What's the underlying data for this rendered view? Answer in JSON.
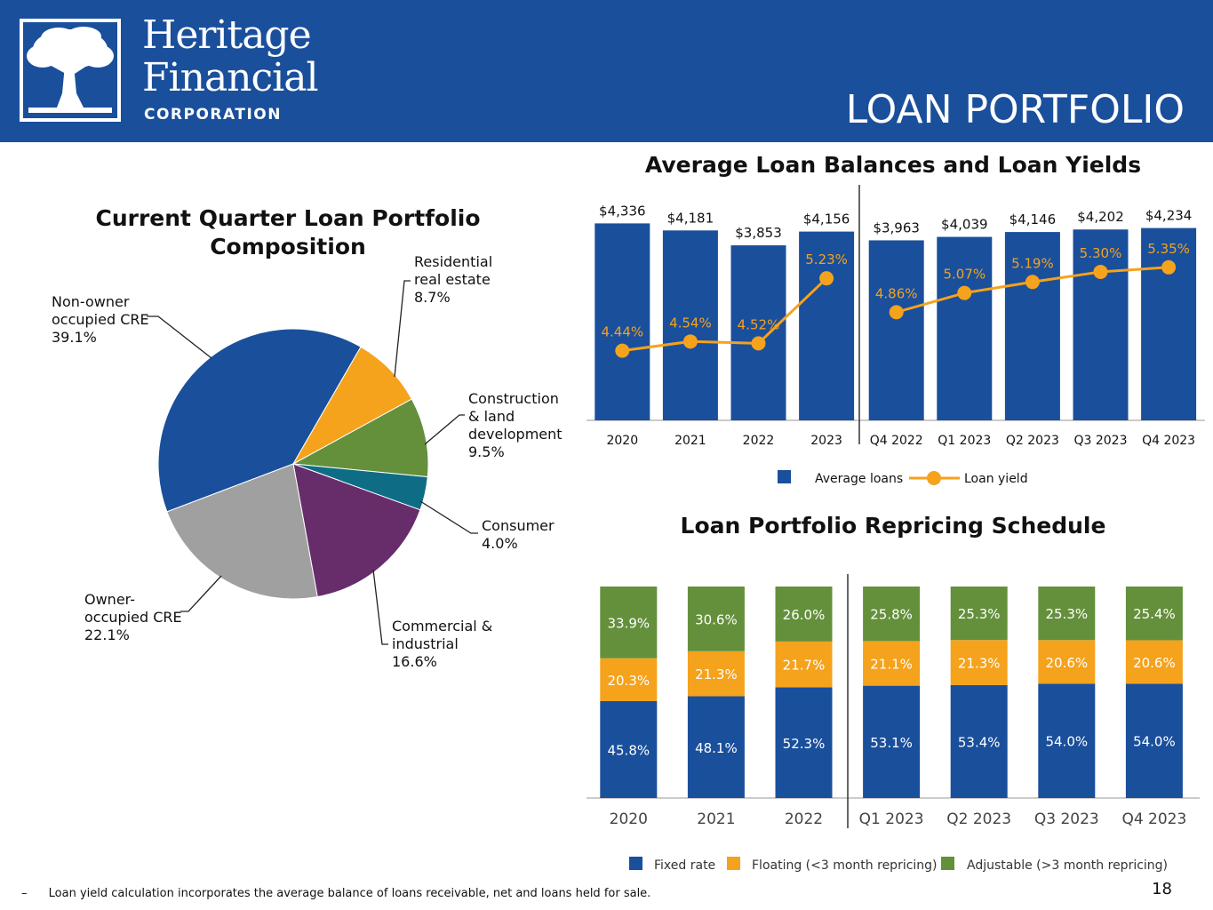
{
  "header": {
    "company_line1": "Heritage",
    "company_line2": "Financial",
    "company_line3": "CORPORATION",
    "page_title": "LOAN PORTFOLIO",
    "logo_icon": "tree-icon",
    "bg_color": "#1a4f9c"
  },
  "footnote": {
    "bullet": "–",
    "text": "Loan yield calculation incorporates the average balance of loans receivable, net and loans held for sale."
  },
  "page_number": "18",
  "chart_data": [
    {
      "type": "pie",
      "title": "Current Quarter Loan Portfolio Composition",
      "slices": [
        {
          "name": "Non-owner occupied CRE",
          "value": 39.1,
          "label": "39.1%",
          "color": "#1a4f9c"
        },
        {
          "name": "Residential real estate",
          "value": 8.7,
          "label": "8.7%",
          "color": "#f5a21c"
        },
        {
          "name": "Construction & land development",
          "value": 9.5,
          "label": "9.5%",
          "color": "#64903c"
        },
        {
          "name": "Consumer",
          "value": 4.0,
          "label": "4.0%",
          "color": "#0e6d85"
        },
        {
          "name": "Commercial & industrial",
          "value": 16.6,
          "label": "16.6%",
          "color": "#672d6b"
        },
        {
          "name": "Owner-occupied CRE",
          "value": 22.1,
          "label": "22.1%",
          "color": "#a0a0a0"
        }
      ]
    },
    {
      "type": "bar",
      "title": "Average Loan Balances and Loan Yields",
      "categories": [
        "2020",
        "2021",
        "2022",
        "2023",
        "Q4 2022",
        "Q1 2023",
        "Q2 2023",
        "Q3 2023",
        "Q4 2023"
      ],
      "series": [
        {
          "name": "Average loans",
          "type": "bar",
          "color": "#1a4f9c",
          "values": [
            4336,
            4181,
            3853,
            4156,
            3963,
            4039,
            4146,
            4202,
            4234
          ],
          "labels": [
            "$4,336",
            "$4,181",
            "$3,853",
            "$4,156",
            "$3,963",
            "$4,039",
            "$4,146",
            "$4,202",
            "$4,234"
          ]
        },
        {
          "name": "Loan yield",
          "type": "line",
          "color": "#f5a21c",
          "values": [
            4.44,
            4.54,
            4.52,
            5.23,
            4.86,
            5.07,
            5.19,
            5.3,
            5.35
          ],
          "labels": [
            "4.44%",
            "4.54%",
            "4.52%",
            "5.23%",
            "4.86%",
            "5.07%",
            "5.19%",
            "5.30%",
            "5.35%"
          ]
        }
      ],
      "ylim": [
        0,
        4500
      ],
      "legend": "bottom"
    },
    {
      "type": "bar",
      "stacked": true,
      "title": "Loan Portfolio Repricing Schedule",
      "categories": [
        "2020",
        "2021",
        "2022",
        "Q1 2023",
        "Q2 2023",
        "Q3 2023",
        "Q4 2023"
      ],
      "series": [
        {
          "name": "Fixed rate",
          "color": "#1a4f9c",
          "values": [
            45.8,
            48.1,
            52.3,
            53.1,
            53.4,
            54.0,
            54.0
          ],
          "labels": [
            "45.8%",
            "48.1%",
            "52.3%",
            "53.1%",
            "53.4%",
            "54.0%",
            "54.0%"
          ]
        },
        {
          "name": "Floating (<3 month repricing)",
          "color": "#f5a21c",
          "values": [
            20.3,
            21.3,
            21.7,
            21.1,
            21.3,
            20.6,
            20.6
          ],
          "labels": [
            "20.3%",
            "21.3%",
            "21.7%",
            "21.1%",
            "21.3%",
            "20.6%",
            "20.6%"
          ]
        },
        {
          "name": "Adjustable (>3 month repricing)",
          "color": "#64903c",
          "values": [
            33.9,
            30.6,
            26.0,
            25.8,
            25.3,
            25.3,
            25.4
          ],
          "labels": [
            "33.9%",
            "30.6%",
            "26.0%",
            "25.8%",
            "25.3%",
            "25.3%",
            "25.4%"
          ]
        }
      ],
      "legend": "bottom"
    }
  ]
}
